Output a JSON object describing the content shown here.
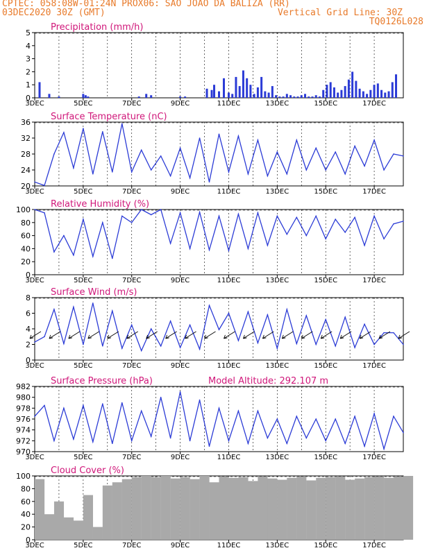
{
  "header": {
    "line1_left": "CPTEC:   058:08W-01:24N   PROX06: SAO JOAO DA BALIZA (RR)",
    "line2_left": "03DEC2020 30Z (GMT)",
    "line2_right": "Vertical Grid Line: 30Z",
    "line3_right": "TQ0126L028"
  },
  "x_ticks": [
    "3DEC",
    "5DEC",
    "7DEC",
    "9DEC",
    "11DEC",
    "13DEC",
    "15DEC",
    "17DEC"
  ],
  "colors": {
    "header": "#e87a2a",
    "title": "#d0177a",
    "line": "#2b3bd6",
    "bars": "#2b3bd6",
    "cloud": "#a9a9a9"
  },
  "chart_data": [
    {
      "type": "bar",
      "title": "Precipitation (mm/h)",
      "ylim": [
        0,
        5
      ],
      "yticks": [
        "0",
        "1",
        "2",
        "3",
        "4",
        "5"
      ],
      "x": [
        0.2,
        0.6,
        1.0,
        2.0,
        2.1,
        2.2,
        4.3,
        4.6,
        4.8,
        6.0,
        6.2,
        7.1,
        7.3,
        7.4,
        7.6,
        7.8,
        8.0,
        8.15,
        8.3,
        8.45,
        8.6,
        8.75,
        8.9,
        9.05,
        9.2,
        9.35,
        9.5,
        9.65,
        9.8,
        9.95,
        10.1,
        10.25,
        10.4,
        10.55,
        10.7,
        10.85,
        11.0,
        11.15,
        11.3,
        11.45,
        11.6,
        11.75,
        11.9,
        12.05,
        12.2,
        12.35,
        12.5,
        12.65,
        12.8,
        12.95,
        13.1,
        13.25,
        13.4,
        13.55,
        13.7,
        13.85,
        14.0,
        14.15,
        14.3,
        14.45,
        14.6,
        14.75,
        14.9
      ],
      "values": [
        1.2,
        0.3,
        0.1,
        0.3,
        0.2,
        0.1,
        0.1,
        0.3,
        0.2,
        0.1,
        0.1,
        0.7,
        0.6,
        1.0,
        0.5,
        1.5,
        0.4,
        0.3,
        1.6,
        0.9,
        2.1,
        1.5,
        1.0,
        0.3,
        0.8,
        1.6,
        0.5,
        0.4,
        0.9,
        0.2,
        0.1,
        0.1,
        0.3,
        0.2,
        0.1,
        0.1,
        0.2,
        0.3,
        0.1,
        0.1,
        0.2,
        0.1,
        0.6,
        1.0,
        1.2,
        0.8,
        0.4,
        0.6,
        0.9,
        1.4,
        2.0,
        1.3,
        0.7,
        0.5,
        0.3,
        0.6,
        1.0,
        1.1,
        0.6,
        0.4,
        0.5,
        1.2,
        1.8
      ]
    },
    {
      "type": "line",
      "title": "Surface Temperature (nC)",
      "ylim": [
        20,
        36
      ],
      "yticks": [
        "20",
        "24",
        "28",
        "32",
        "36"
      ],
      "x": [
        0,
        0.4,
        0.8,
        1.2,
        1.6,
        2.0,
        2.4,
        2.8,
        3.2,
        3.6,
        4.0,
        4.4,
        4.8,
        5.2,
        5.6,
        6.0,
        6.4,
        6.8,
        7.2,
        7.6,
        8.0,
        8.4,
        8.8,
        9.2,
        9.6,
        10.0,
        10.4,
        10.8,
        11.2,
        11.6,
        12.0,
        12.4,
        12.8,
        13.2,
        13.6,
        14.0,
        14.4,
        14.8,
        15.2
      ],
      "values": [
        21.0,
        20.1,
        28.0,
        33.4,
        24.5,
        34.4,
        23.0,
        33.6,
        23.5,
        35.6,
        23.5,
        29.0,
        24.0,
        27.5,
        22.5,
        29.5,
        22.0,
        32.0,
        21.0,
        33.0,
        23.5,
        32.5,
        23.0,
        31.5,
        22.5,
        28.5,
        23.0,
        31.5,
        24.0,
        29.5,
        24.0,
        28.5,
        23.0,
        30.0,
        25.0,
        31.5,
        24.0,
        28.0,
        27.5
      ]
    },
    {
      "type": "line",
      "title": "Relative Humidity (%)",
      "ylim": [
        0,
        100
      ],
      "yticks": [
        "0",
        "20",
        "40",
        "60",
        "80",
        "100"
      ],
      "x": [
        0,
        0.4,
        0.8,
        1.2,
        1.6,
        2.0,
        2.4,
        2.8,
        3.2,
        3.6,
        4.0,
        4.4,
        4.8,
        5.2,
        5.6,
        6.0,
        6.4,
        6.8,
        7.2,
        7.6,
        8.0,
        8.4,
        8.8,
        9.2,
        9.6,
        10.0,
        10.4,
        10.8,
        11.2,
        11.6,
        12.0,
        12.4,
        12.8,
        13.2,
        13.6,
        14.0,
        14.4,
        14.8,
        15.2
      ],
      "values": [
        100,
        95,
        35,
        60,
        30,
        85,
        28,
        80,
        25,
        90,
        80,
        100,
        92,
        100,
        48,
        95,
        40,
        96,
        38,
        90,
        37,
        93,
        40,
        95,
        45,
        90,
        62,
        88,
        60,
        90,
        55,
        85,
        65,
        88,
        45,
        90,
        55,
        78,
        82
      ]
    },
    {
      "type": "line",
      "title": "Surface Wind (m/s)",
      "ylim": [
        0,
        8
      ],
      "yticks": [
        "0",
        "2",
        "4",
        "6",
        "8"
      ],
      "x": [
        0,
        0.4,
        0.8,
        1.2,
        1.6,
        2.0,
        2.4,
        2.8,
        3.2,
        3.6,
        4.0,
        4.4,
        4.8,
        5.2,
        5.6,
        6.0,
        6.4,
        6.8,
        7.2,
        7.6,
        8.0,
        8.4,
        8.8,
        9.2,
        9.6,
        10.0,
        10.4,
        10.8,
        11.2,
        11.6,
        12.0,
        12.4,
        12.8,
        13.2,
        13.6,
        14.0,
        14.4,
        14.8,
        15.2
      ],
      "values": [
        2.3,
        3.0,
        6.5,
        2.1,
        6.8,
        2.0,
        7.3,
        1.8,
        6.3,
        1.5,
        4.5,
        1.2,
        4.0,
        1.8,
        5.0,
        1.6,
        4.5,
        1.4,
        7.0,
        3.9,
        6.0,
        2.5,
        6.2,
        2.2,
        5.8,
        1.5,
        6.5,
        2.1,
        5.7,
        2.0,
        5.2,
        1.8,
        5.5,
        1.6,
        4.6,
        2.0,
        3.5,
        3.5,
        2.0
      ]
    },
    {
      "type": "line",
      "title": "Surface Pressure (hPa)",
      "subtitle": "Model Altitude: 292.107 m",
      "ylim": [
        970,
        982
      ],
      "yticks": [
        "970",
        "972",
        "974",
        "976",
        "978",
        "980",
        "982"
      ],
      "x": [
        0,
        0.4,
        0.8,
        1.2,
        1.6,
        2.0,
        2.4,
        2.8,
        3.2,
        3.6,
        4.0,
        4.4,
        4.8,
        5.2,
        5.6,
        6.0,
        6.4,
        6.8,
        7.2,
        7.6,
        8.0,
        8.4,
        8.8,
        9.2,
        9.6,
        10.0,
        10.4,
        10.8,
        11.2,
        11.6,
        12.0,
        12.4,
        12.8,
        13.2,
        13.6,
        14.0,
        14.4,
        14.8,
        15.2
      ],
      "values": [
        976.5,
        978.5,
        972.0,
        978.0,
        972.3,
        978.5,
        971.8,
        978.8,
        971.5,
        979.0,
        972.0,
        977.5,
        972.8,
        980.0,
        972.5,
        981.0,
        972.0,
        979.5,
        971.0,
        978.0,
        972.0,
        977.5,
        971.5,
        977.5,
        972.5,
        976.0,
        971.5,
        976.5,
        972.5,
        976.0,
        972.0,
        976.0,
        971.5,
        976.5,
        971.0,
        977.0,
        970.5,
        976.5,
        973.5
      ]
    },
    {
      "type": "area",
      "title": "Cloud Cover (%)",
      "ylim": [
        0,
        100
      ],
      "yticks": [
        "0",
        "20",
        "40",
        "60",
        "80",
        "100"
      ],
      "x": [
        0,
        0.4,
        0.8,
        1.2,
        1.6,
        2.0,
        2.4,
        2.8,
        3.2,
        3.6,
        4.0,
        4.4,
        4.8,
        5.2,
        5.6,
        6.0,
        6.4,
        6.8,
        7.2,
        7.6,
        8.0,
        8.4,
        8.8,
        9.2,
        9.6,
        10.0,
        10.4,
        10.8,
        11.2,
        11.6,
        12.0,
        12.4,
        12.8,
        13.2,
        13.6,
        14.0,
        14.4,
        14.8,
        15.2
      ],
      "values": [
        95,
        40,
        60,
        35,
        30,
        70,
        20,
        85,
        90,
        95,
        98,
        100,
        98,
        100,
        96,
        98,
        95,
        100,
        90,
        99,
        97,
        98,
        92,
        99,
        96,
        94,
        97,
        99,
        93,
        97,
        98,
        99,
        94,
        96,
        98,
        99,
        97,
        99,
        100
      ]
    }
  ]
}
